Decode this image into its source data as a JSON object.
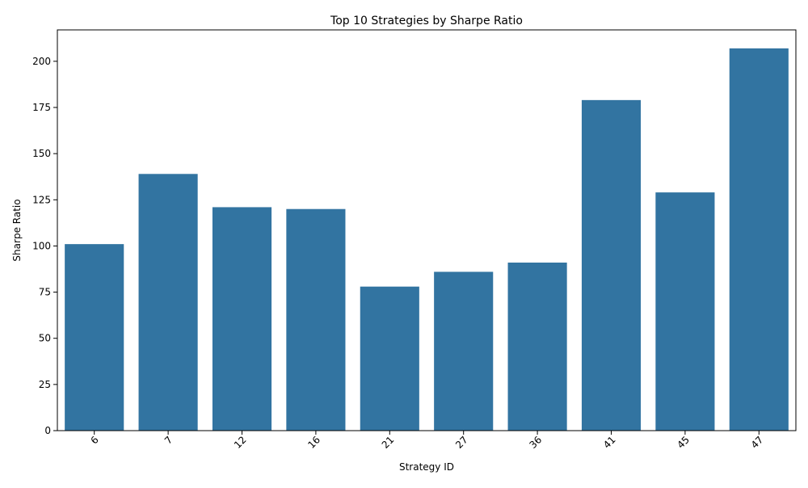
{
  "chart_data": {
    "type": "bar",
    "title": "Top 10 Strategies by Sharpe Ratio",
    "xlabel": "Strategy ID",
    "ylabel": "Sharpe Ratio",
    "categories": [
      "6",
      "7",
      "12",
      "16",
      "21",
      "27",
      "36",
      "41",
      "45",
      "47"
    ],
    "values": [
      101,
      139,
      121,
      120,
      78,
      86,
      91,
      179,
      129,
      207
    ],
    "ylim": [
      0,
      217
    ],
    "yticks": [
      0,
      25,
      50,
      75,
      100,
      125,
      150,
      175,
      200
    ],
    "xtick_rotation_deg": 45,
    "bar_color": "#3274a1",
    "grid": false,
    "legend": "none"
  }
}
